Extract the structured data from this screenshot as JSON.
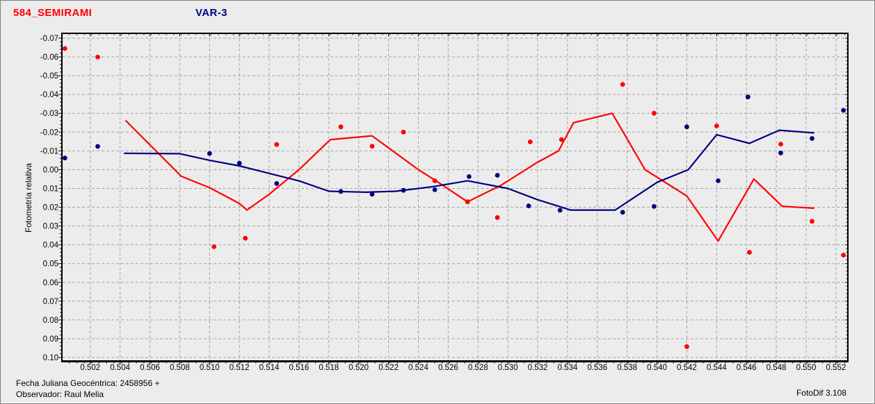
{
  "header": {
    "target_name": "584_SEMIRAMI",
    "comparison_name": "VAR-3",
    "target_color": "#ff0000",
    "comparison_color": "#000080"
  },
  "footer": {
    "julian_date": "Fecha Juliana Geocéntrica: 2458956 +",
    "observer": "Observador: Raul Melia",
    "software": "FotoDif 3.108"
  },
  "chart_data": {
    "type": "scatter",
    "grid": true,
    "legend_position": "none",
    "background": "#ececec",
    "gridline_color": "#a3a3a3",
    "x_axis": {
      "label": "",
      "min": 0.5001,
      "max": 0.5528,
      "tick_step": 0.002,
      "minor_step": 0.0005,
      "ticks": [
        "0.502",
        "0.504",
        "0.506",
        "0.508",
        "0.510",
        "0.512",
        "0.514",
        "0.516",
        "0.518",
        "0.520",
        "0.522",
        "0.524",
        "0.526",
        "0.528",
        "0.530",
        "0.532",
        "0.534",
        "0.536",
        "0.538",
        "0.540",
        "0.542",
        "0.544",
        "0.546",
        "0.548",
        "0.550",
        "0.552"
      ]
    },
    "y_axis": {
      "label": "Fotometría relativa",
      "min": -0.07,
      "max": 0.1,
      "inverted": true,
      "tick_step": 0.01,
      "minor_step": 0.002,
      "ticks": [
        "-0.07",
        "-0.06",
        "-0.05",
        "-0.04",
        "-0.03",
        "-0.02",
        "-0.01",
        "0.00",
        "0.01",
        "0.02",
        "0.03",
        "0.04",
        "0.05",
        "0.06",
        "0.07",
        "0.08",
        "0.09",
        "0.10"
      ]
    },
    "series": [
      {
        "name": "584_SEMIRAMI",
        "kind": "scatter",
        "color": "#ff0000",
        "points": [
          [
            0.5003,
            -0.0645
          ],
          [
            0.5025,
            -0.06
          ],
          [
            0.5103,
            0.041
          ],
          [
            0.5124,
            0.0365
          ],
          [
            0.5145,
            -0.0134
          ],
          [
            0.5188,
            -0.0228
          ],
          [
            0.5209,
            -0.0125
          ],
          [
            0.523,
            -0.02
          ],
          [
            0.5251,
            0.0059
          ],
          [
            0.5273,
            0.0171
          ],
          [
            0.5293,
            0.0255
          ],
          [
            0.5315,
            -0.0148
          ],
          [
            0.5336,
            -0.016
          ],
          [
            0.5377,
            -0.0454
          ],
          [
            0.5398,
            -0.03
          ],
          [
            0.542,
            0.0942
          ],
          [
            0.544,
            -0.0233
          ],
          [
            0.5462,
            0.044
          ],
          [
            0.5483,
            -0.0136
          ],
          [
            0.5504,
            0.0275
          ],
          [
            0.5525,
            0.0455
          ]
        ]
      },
      {
        "name": "584_SEMIRAMI (curva)",
        "kind": "line",
        "color": "#ff0000",
        "points": [
          [
            0.5044,
            -0.026
          ],
          [
            0.5081,
            0.0035
          ],
          [
            0.51,
            0.0096
          ],
          [
            0.512,
            0.018
          ],
          [
            0.5125,
            0.0215
          ],
          [
            0.514,
            0.0131
          ],
          [
            0.516,
            0.0
          ],
          [
            0.5181,
            -0.016
          ],
          [
            0.5209,
            -0.018
          ],
          [
            0.524,
            0.0
          ],
          [
            0.5251,
            0.0055
          ],
          [
            0.5273,
            0.0171
          ],
          [
            0.5295,
            0.0085
          ],
          [
            0.532,
            -0.004
          ],
          [
            0.5334,
            -0.01
          ],
          [
            0.5344,
            -0.025
          ],
          [
            0.537,
            -0.03
          ],
          [
            0.5392,
            0.0
          ],
          [
            0.542,
            0.014
          ],
          [
            0.5441,
            0.038
          ],
          [
            0.5465,
            0.005
          ],
          [
            0.5484,
            0.0195
          ],
          [
            0.5505,
            0.0205
          ]
        ]
      },
      {
        "name": "VAR-3",
        "kind": "scatter",
        "color": "#000080",
        "points": [
          [
            0.5003,
            -0.0062
          ],
          [
            0.5025,
            -0.0124
          ],
          [
            0.51,
            -0.0086
          ],
          [
            0.512,
            -0.0034
          ],
          [
            0.5145,
            0.0074
          ],
          [
            0.5188,
            0.0116
          ],
          [
            0.5209,
            0.0131
          ],
          [
            0.523,
            0.011
          ],
          [
            0.5251,
            0.0107
          ],
          [
            0.5274,
            0.0037
          ],
          [
            0.5293,
            0.003
          ],
          [
            0.5314,
            0.0193
          ],
          [
            0.5335,
            0.0216
          ],
          [
            0.5377,
            0.0227
          ],
          [
            0.5398,
            0.0196
          ],
          [
            0.542,
            -0.0228
          ],
          [
            0.5441,
            0.0059
          ],
          [
            0.5461,
            -0.0387
          ],
          [
            0.5483,
            -0.0089
          ],
          [
            0.5504,
            -0.0166
          ],
          [
            0.5525,
            -0.0316
          ]
        ]
      },
      {
        "name": "VAR-3 (curva)",
        "kind": "line",
        "color": "#000080",
        "points": [
          [
            0.5043,
            -0.0087
          ],
          [
            0.508,
            -0.0085
          ],
          [
            0.51,
            -0.005
          ],
          [
            0.512,
            -0.002
          ],
          [
            0.514,
            0.002
          ],
          [
            0.516,
            0.006
          ],
          [
            0.518,
            0.0115
          ],
          [
            0.5205,
            0.012
          ],
          [
            0.5225,
            0.0115
          ],
          [
            0.525,
            0.009
          ],
          [
            0.5273,
            0.0059
          ],
          [
            0.53,
            0.01
          ],
          [
            0.532,
            0.016
          ],
          [
            0.5342,
            0.0215
          ],
          [
            0.5372,
            0.0215
          ],
          [
            0.54,
            0.0068
          ],
          [
            0.5421,
            0.0
          ],
          [
            0.544,
            -0.0186
          ],
          [
            0.5462,
            -0.014
          ],
          [
            0.5482,
            -0.021
          ],
          [
            0.5505,
            -0.0196
          ]
        ]
      }
    ]
  }
}
